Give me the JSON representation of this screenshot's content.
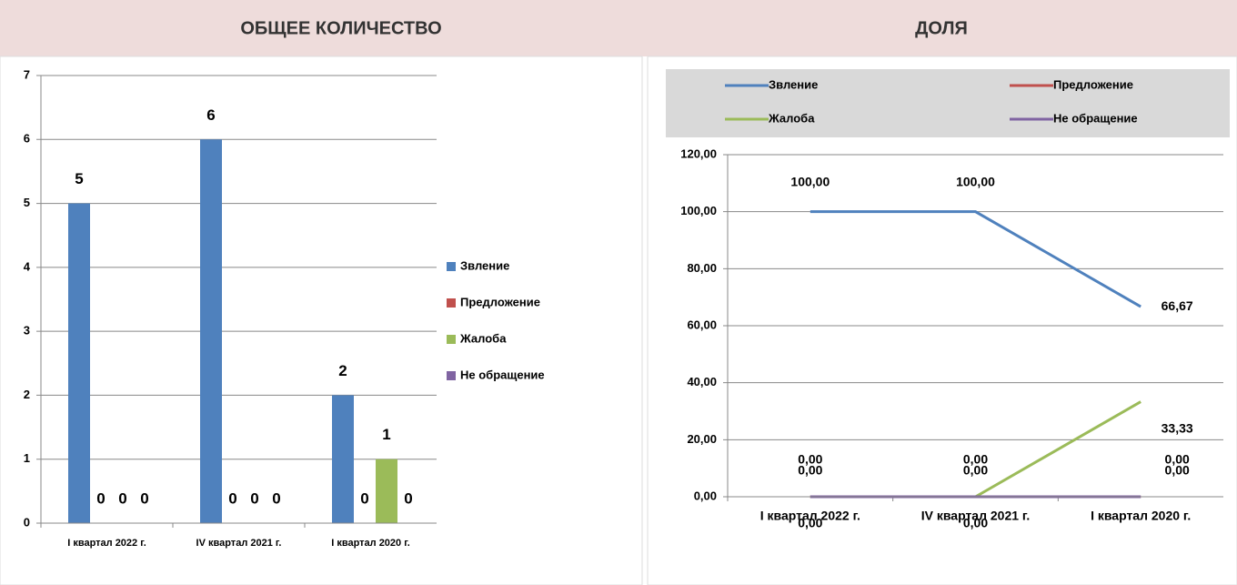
{
  "chart_data": [
    {
      "type": "bar",
      "title": "ОБЩЕЕ КОЛИЧЕСТВО",
      "categories": [
        "I квартал 2022 г.",
        "IV квартал 2021 г.",
        "I квартал 2020 г."
      ],
      "series": [
        {
          "name": "Звление",
          "color": "#4f81bd",
          "values": [
            5,
            6,
            2
          ]
        },
        {
          "name": "Предложение",
          "color": "#c0504d",
          "values": [
            0,
            0,
            0
          ]
        },
        {
          "name": "Жалоба",
          "color": "#9bbb59",
          "values": [
            0,
            0,
            1
          ]
        },
        {
          "name": "Не обращение",
          "color": "#8064a2",
          "values": [
            0,
            0,
            0
          ]
        }
      ],
      "ylim": [
        0,
        7
      ],
      "yticks": [
        0,
        1,
        2,
        3,
        4,
        5,
        6,
        7
      ],
      "grid": true,
      "legend": "right"
    },
    {
      "type": "line",
      "title": "ДОЛЯ",
      "categories": [
        "I квартал 2022 г.",
        "IV квартал 2021 г.",
        "I квартал 2020 г."
      ],
      "series": [
        {
          "name": "Звление",
          "color": "#4f81bd",
          "values": [
            100,
            100,
            66.67
          ],
          "value_labels": [
            "100,00",
            "100,00",
            "66,67"
          ]
        },
        {
          "name": "Предложение",
          "color": "#c0504d",
          "values": [
            0,
            0,
            0
          ],
          "value_labels": [
            "0,00",
            "0,00",
            "0,00"
          ]
        },
        {
          "name": "Жалоба",
          "color": "#9bbb59",
          "values": [
            0,
            0,
            33.33
          ],
          "value_labels": [
            "0,00",
            "0,00",
            "33,33"
          ]
        },
        {
          "name": "Не обращение",
          "color": "#8064a2",
          "values": [
            0,
            0,
            0
          ],
          "value_labels": [
            "0,00",
            "0,00",
            "0,00"
          ]
        }
      ],
      "ylim": [
        0,
        120
      ],
      "yticks": [
        {
          "value": 0,
          "label": "0,00"
        },
        {
          "value": 20,
          "label": "20,00"
        },
        {
          "value": 40,
          "label": "40,00"
        },
        {
          "value": 60,
          "label": "60,00"
        },
        {
          "value": 80,
          "label": "80,00"
        },
        {
          "value": 100,
          "label": "100,00"
        },
        {
          "value": 120,
          "label": "120,00"
        }
      ],
      "grid": true,
      "legend": "top"
    }
  ]
}
